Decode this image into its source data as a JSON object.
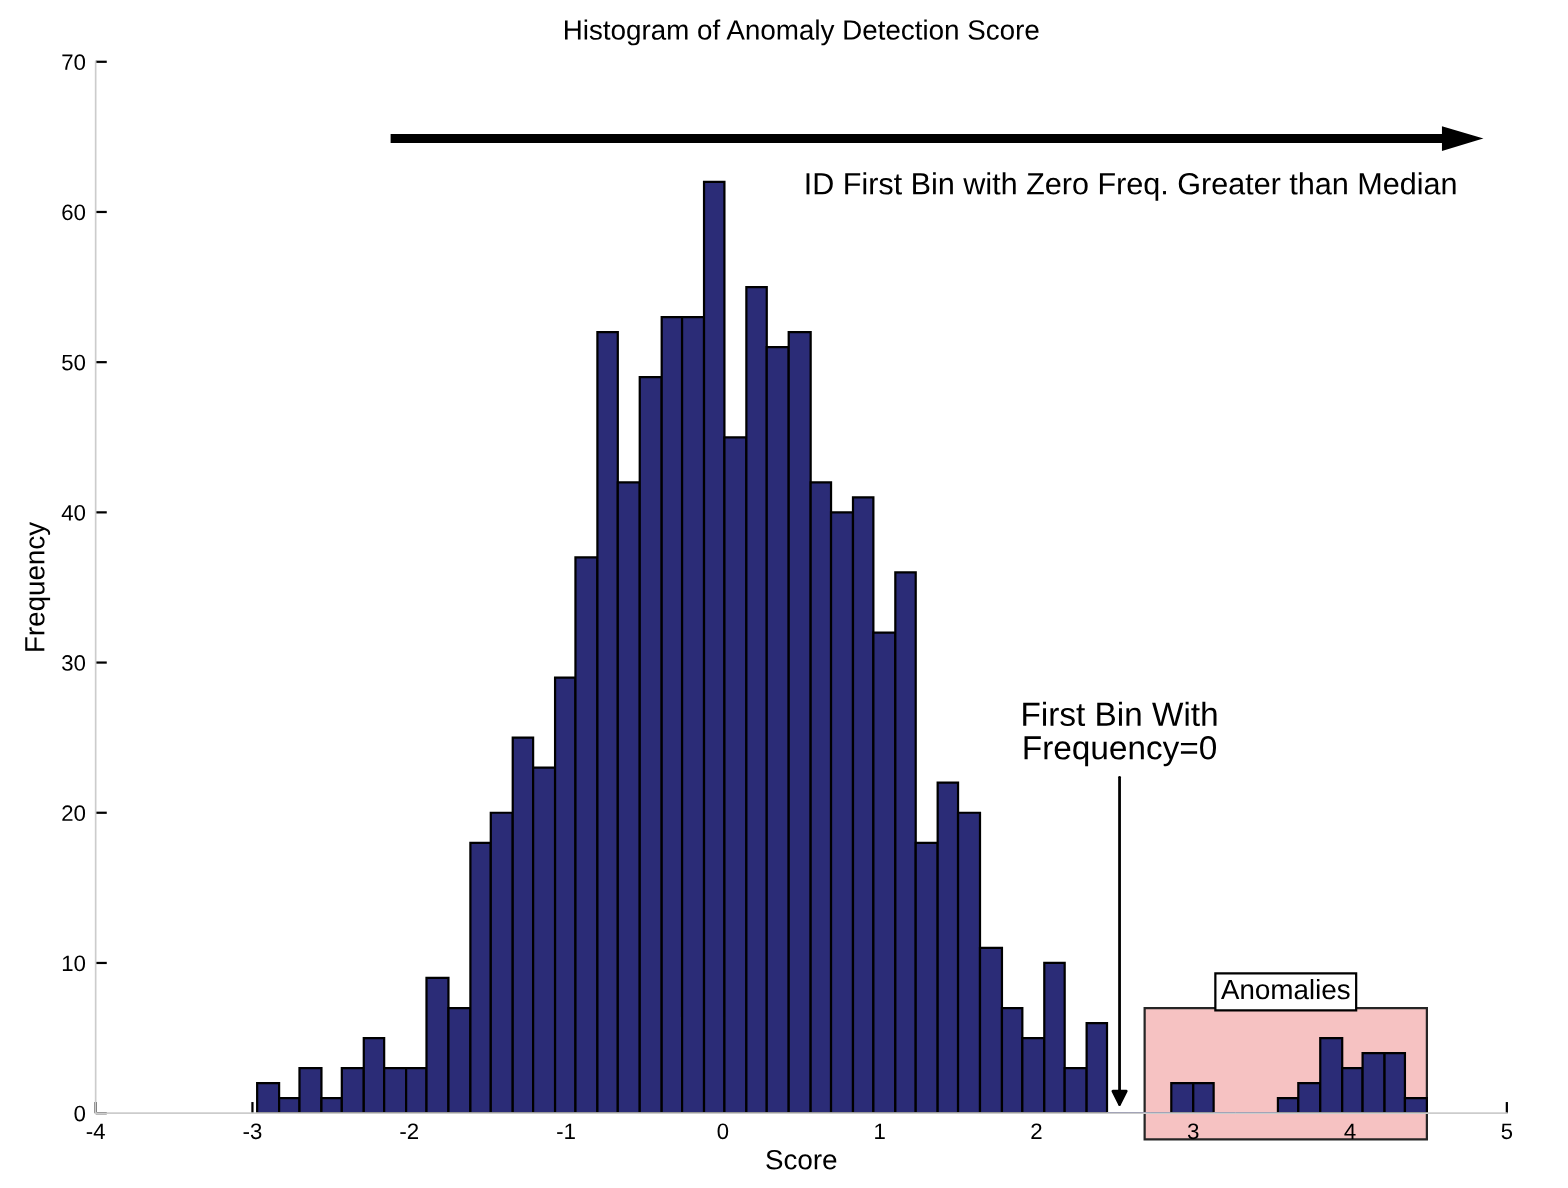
{
  "chart_data": {
    "type": "histogram",
    "title": "Histogram of Anomaly Detection Score",
    "xlabel": "Score",
    "ylabel": "Frequency",
    "bins": [
      -2.97,
      -2.83,
      -2.7,
      -2.56,
      -2.43,
      -2.29,
      -2.16,
      -2.02,
      -1.89,
      -1.75,
      -1.61,
      -1.48,
      -1.34,
      -1.21,
      -1.07,
      -0.94,
      -0.8,
      -0.67,
      -0.53,
      -0.39,
      -0.26,
      -0.12,
      0.01,
      0.15,
      0.28,
      0.42,
      0.56,
      0.69,
      0.83,
      0.96,
      1.1,
      1.23,
      1.37,
      1.5,
      1.64,
      1.78,
      1.91,
      2.05,
      2.18,
      2.32,
      2.45,
      2.59,
      2.73,
      2.86,
      3.0,
      3.13,
      3.27,
      3.4,
      3.54,
      3.67,
      3.81,
      3.95,
      4.08,
      4.22,
      4.35,
      4.49
    ],
    "values": [
      2,
      1,
      3,
      1,
      3,
      5,
      3,
      3,
      9,
      7,
      18,
      20,
      25,
      23,
      29,
      37,
      52,
      42,
      49,
      53,
      53,
      62,
      45,
      55,
      51,
      52,
      42,
      40,
      41,
      32,
      36,
      18,
      22,
      20,
      11,
      7,
      5,
      10,
      3,
      6,
      0,
      0,
      0,
      2,
      2,
      0,
      0,
      0,
      1,
      2,
      5,
      3,
      4,
      4,
      1
    ],
    "color": "#2b2c77",
    "xlim": [
      -4,
      5
    ],
    "xticks": [
      -4,
      -3,
      -2,
      -1,
      0,
      1,
      2,
      3,
      4,
      5
    ],
    "ylim": [
      0,
      70
    ],
    "yticks": [
      0,
      10,
      20,
      30,
      40,
      50,
      60,
      70
    ],
    "grid": false,
    "bands": [
      {
        "axis": "x",
        "from": 2.69,
        "to": 4.49,
        "label": "Anomalies",
        "color": "#f5b8b8"
      }
    ],
    "annotations": [
      "ID First Bin with Zero Freq. Greater than Median",
      {
        "text": "First Bin With\nFrequency=0",
        "x": 2.53,
        "y": 0
      }
    ]
  }
}
